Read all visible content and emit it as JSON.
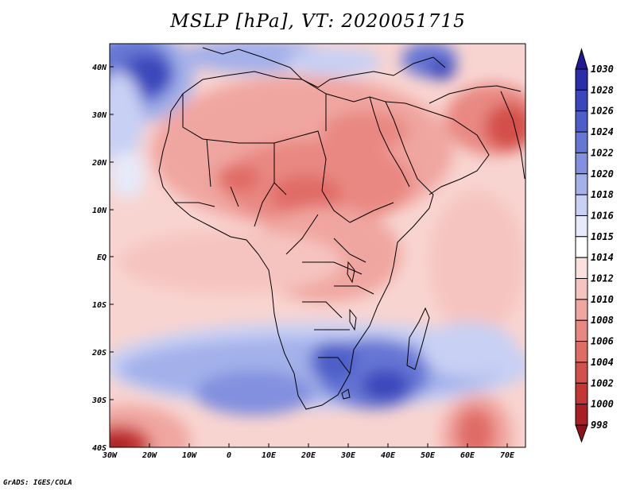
{
  "title": "MSLP [hPa], VT: 2020051715",
  "credit": "GrADS: IGES/COLA",
  "map": {
    "lon_labels": [
      "30W",
      "20W",
      "10W",
      "0",
      "10E",
      "20E",
      "30E",
      "40E",
      "50E",
      "60E",
      "70E"
    ],
    "lat_labels": [
      "40N",
      "30N",
      "20N",
      "10N",
      "EQ",
      "10S",
      "20S",
      "30S",
      "40S"
    ]
  },
  "colorbar": {
    "labels": [
      "1030",
      "1028",
      "1026",
      "1024",
      "1022",
      "1020",
      "1018",
      "1016",
      "1015",
      "1014",
      "1012",
      "1010",
      "1008",
      "1006",
      "1004",
      "1002",
      "1000",
      "998"
    ],
    "colors": [
      "#201894",
      "#2a2eaa",
      "#3a46bb",
      "#4e5ec8",
      "#6676d4",
      "#8290df",
      "#a3b0ea",
      "#c8d0f4",
      "#e6eafa",
      "#ffffff",
      "#fbe0de",
      "#f6c4c0",
      "#f0a6a0",
      "#e98882",
      "#e06c66",
      "#d4504a",
      "#c63634",
      "#a82024",
      "#8c1418"
    ]
  }
}
